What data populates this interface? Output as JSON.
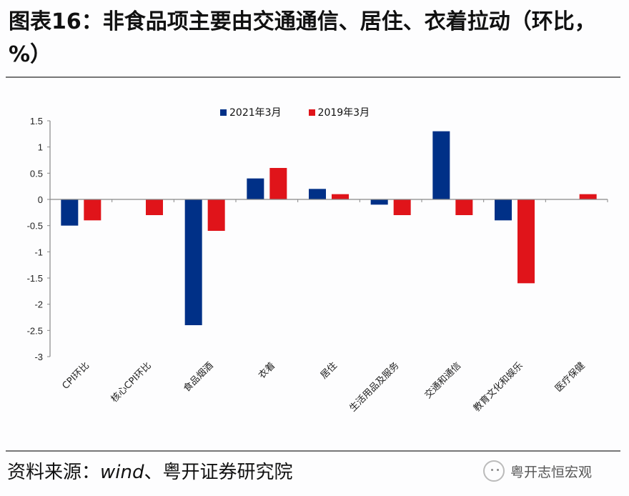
{
  "title": "图表16：非食品项主要由交通通信、居住、衣着拉动（环比，%）",
  "source": {
    "prefix": "资料来源：",
    "wind": "wind",
    "suffix": "、粤开证券研究院"
  },
  "brand": {
    "icon": "wechat-icon",
    "text": "粤开志恒宏观"
  },
  "colors": {
    "series_2021": "#003087",
    "series_2019": "#e0141a"
  },
  "chart_data": {
    "type": "bar",
    "title": "非食品项主要由交通通信、居住、衣着拉动（环比，%）",
    "xlabel": "",
    "ylabel": "",
    "ylim": [
      -3,
      1.5
    ],
    "yticks": [
      1.5,
      1,
      0.5,
      0,
      -0.5,
      -1,
      -1.5,
      -2,
      -2.5,
      -3
    ],
    "ytick_labels": [
      "1.5",
      "1",
      "0.5",
      "0",
      "-0.5",
      "-1",
      "-1.5",
      "-2",
      "-2.5",
      "-3"
    ],
    "grid": false,
    "legend_position": "top-center",
    "categories": [
      "CPI环比",
      "核心CPI环比",
      "食品烟酒",
      "衣着",
      "居住",
      "生活用品及服务",
      "交通和通信",
      "教育文化和娱乐",
      "医疗保健"
    ],
    "series": [
      {
        "name": "2021年3月",
        "color": "#003087",
        "values": [
          -0.5,
          0,
          -2.4,
          0.4,
          0.2,
          -0.1,
          1.3,
          -0.4,
          0
        ]
      },
      {
        "name": "2019年3月",
        "color": "#e0141a",
        "values": [
          -0.4,
          -0.3,
          -0.6,
          0.6,
          0.1,
          -0.3,
          -0.3,
          -1.6,
          0.1
        ]
      }
    ]
  }
}
